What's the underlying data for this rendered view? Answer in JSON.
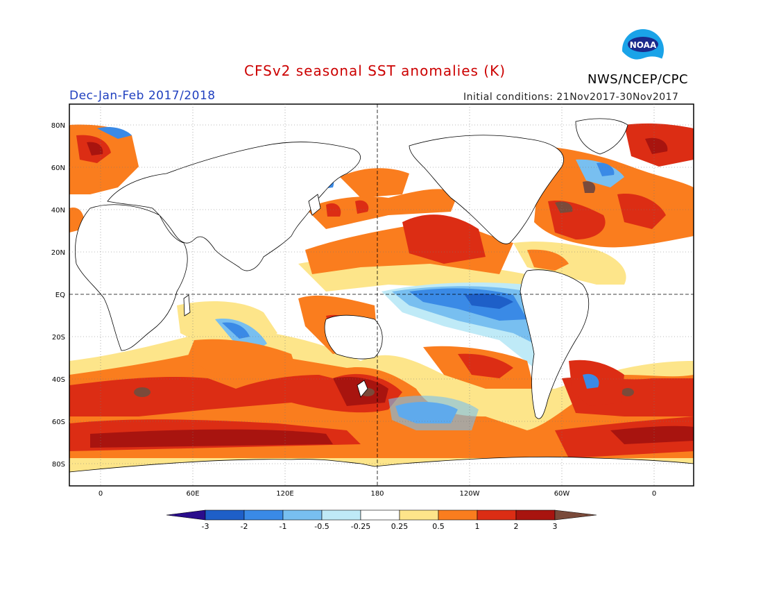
{
  "header": {
    "title": "CFSv2 seasonal SST anomalies (K)",
    "season": "Dec-Jan-Feb 2017/2018",
    "initial_conditions": "Initial conditions: 21Nov2017-30Nov2017",
    "organization": "NWS/NCEP/CPC",
    "logo_text": "NOAA"
  },
  "map": {
    "lat_labels": [
      "80N",
      "60N",
      "40N",
      "20N",
      "EQ",
      "20S",
      "40S",
      "60S",
      "80S"
    ],
    "lon_labels": [
      "0",
      "60E",
      "120E",
      "180",
      "120W",
      "60W",
      "0"
    ],
    "reference_lines": [
      "EQ",
      "180"
    ]
  },
  "legend": {
    "labels": [
      "-3",
      "-2",
      "-1",
      "-0.5",
      "-0.25",
      "0.25",
      "0.5",
      "1",
      "2",
      "3"
    ],
    "colors": [
      "#2a0d8c",
      "#1e5fc8",
      "#3a8ae6",
      "#78bff0",
      "#bfeaf7",
      "#ffffff",
      "#fde58a",
      "#fa7d1e",
      "#dc2d14",
      "#a8140f",
      "#7a4a3a"
    ]
  },
  "colors": {
    "title": "#cc0000",
    "season": "#1f3fbf",
    "land": "#ffffff",
    "warm_mid": "#fa7d1e",
    "warm_high": "#dc2d14",
    "cool_mid": "#3a8ae6",
    "cool_low": "#78bff0"
  }
}
